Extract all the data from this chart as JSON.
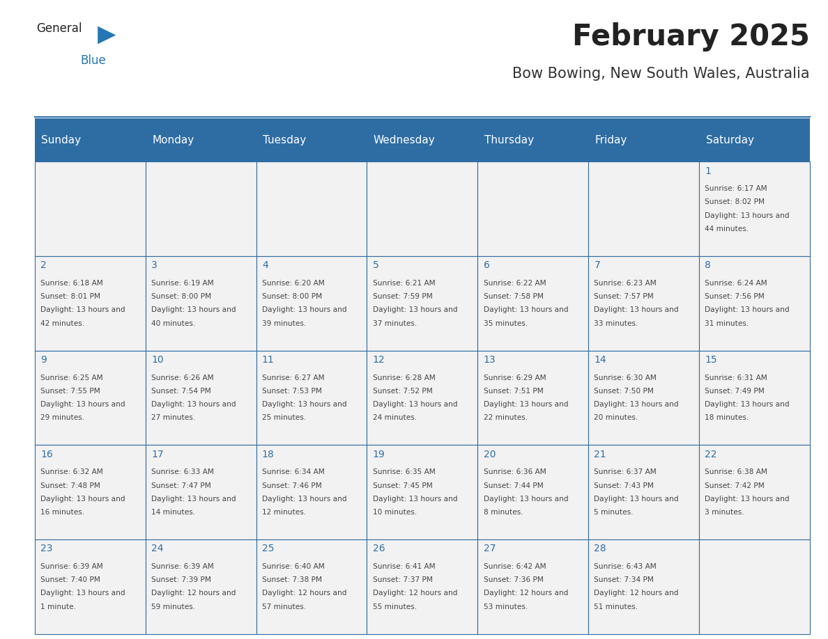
{
  "title": "February 2025",
  "subtitle": "Bow Bowing, New South Wales, Australia",
  "days_of_week": [
    "Sunday",
    "Monday",
    "Tuesday",
    "Wednesday",
    "Thursday",
    "Friday",
    "Saturday"
  ],
  "header_bg": "#2E6DA4",
  "header_text": "#FFFFFF",
  "cell_bg_light": "#F2F2F2",
  "text_color": "#444444",
  "day_num_color": "#2E6DA4",
  "grid_line_color": "#2E6DA4",
  "title_color": "#222222",
  "subtitle_color": "#333333",
  "logo_general_color": "#222222",
  "logo_blue_color": "#2477B3",
  "weeks": [
    [
      null,
      null,
      null,
      null,
      null,
      null,
      {
        "day": 1,
        "sunrise": "6:17 AM",
        "sunset": "8:02 PM",
        "daylight": "13 hours and 44 minutes."
      }
    ],
    [
      {
        "day": 2,
        "sunrise": "6:18 AM",
        "sunset": "8:01 PM",
        "daylight": "13 hours and 42 minutes."
      },
      {
        "day": 3,
        "sunrise": "6:19 AM",
        "sunset": "8:00 PM",
        "daylight": "13 hours and 40 minutes."
      },
      {
        "day": 4,
        "sunrise": "6:20 AM",
        "sunset": "8:00 PM",
        "daylight": "13 hours and 39 minutes."
      },
      {
        "day": 5,
        "sunrise": "6:21 AM",
        "sunset": "7:59 PM",
        "daylight": "13 hours and 37 minutes."
      },
      {
        "day": 6,
        "sunrise": "6:22 AM",
        "sunset": "7:58 PM",
        "daylight": "13 hours and 35 minutes."
      },
      {
        "day": 7,
        "sunrise": "6:23 AM",
        "sunset": "7:57 PM",
        "daylight": "13 hours and 33 minutes."
      },
      {
        "day": 8,
        "sunrise": "6:24 AM",
        "sunset": "7:56 PM",
        "daylight": "13 hours and 31 minutes."
      }
    ],
    [
      {
        "day": 9,
        "sunrise": "6:25 AM",
        "sunset": "7:55 PM",
        "daylight": "13 hours and 29 minutes."
      },
      {
        "day": 10,
        "sunrise": "6:26 AM",
        "sunset": "7:54 PM",
        "daylight": "13 hours and 27 minutes."
      },
      {
        "day": 11,
        "sunrise": "6:27 AM",
        "sunset": "7:53 PM",
        "daylight": "13 hours and 25 minutes."
      },
      {
        "day": 12,
        "sunrise": "6:28 AM",
        "sunset": "7:52 PM",
        "daylight": "13 hours and 24 minutes."
      },
      {
        "day": 13,
        "sunrise": "6:29 AM",
        "sunset": "7:51 PM",
        "daylight": "13 hours and 22 minutes."
      },
      {
        "day": 14,
        "sunrise": "6:30 AM",
        "sunset": "7:50 PM",
        "daylight": "13 hours and 20 minutes."
      },
      {
        "day": 15,
        "sunrise": "6:31 AM",
        "sunset": "7:49 PM",
        "daylight": "13 hours and 18 minutes."
      }
    ],
    [
      {
        "day": 16,
        "sunrise": "6:32 AM",
        "sunset": "7:48 PM",
        "daylight": "13 hours and 16 minutes."
      },
      {
        "day": 17,
        "sunrise": "6:33 AM",
        "sunset": "7:47 PM",
        "daylight": "13 hours and 14 minutes."
      },
      {
        "day": 18,
        "sunrise": "6:34 AM",
        "sunset": "7:46 PM",
        "daylight": "13 hours and 12 minutes."
      },
      {
        "day": 19,
        "sunrise": "6:35 AM",
        "sunset": "7:45 PM",
        "daylight": "13 hours and 10 minutes."
      },
      {
        "day": 20,
        "sunrise": "6:36 AM",
        "sunset": "7:44 PM",
        "daylight": "13 hours and 8 minutes."
      },
      {
        "day": 21,
        "sunrise": "6:37 AM",
        "sunset": "7:43 PM",
        "daylight": "13 hours and 5 minutes."
      },
      {
        "day": 22,
        "sunrise": "6:38 AM",
        "sunset": "7:42 PM",
        "daylight": "13 hours and 3 minutes."
      }
    ],
    [
      {
        "day": 23,
        "sunrise": "6:39 AM",
        "sunset": "7:40 PM",
        "daylight": "13 hours and 1 minute."
      },
      {
        "day": 24,
        "sunrise": "6:39 AM",
        "sunset": "7:39 PM",
        "daylight": "12 hours and 59 minutes."
      },
      {
        "day": 25,
        "sunrise": "6:40 AM",
        "sunset": "7:38 PM",
        "daylight": "12 hours and 57 minutes."
      },
      {
        "day": 26,
        "sunrise": "6:41 AM",
        "sunset": "7:37 PM",
        "daylight": "12 hours and 55 minutes."
      },
      {
        "day": 27,
        "sunrise": "6:42 AM",
        "sunset": "7:36 PM",
        "daylight": "12 hours and 53 minutes."
      },
      {
        "day": 28,
        "sunrise": "6:43 AM",
        "sunset": "7:34 PM",
        "daylight": "12 hours and 51 minutes."
      },
      null
    ]
  ]
}
